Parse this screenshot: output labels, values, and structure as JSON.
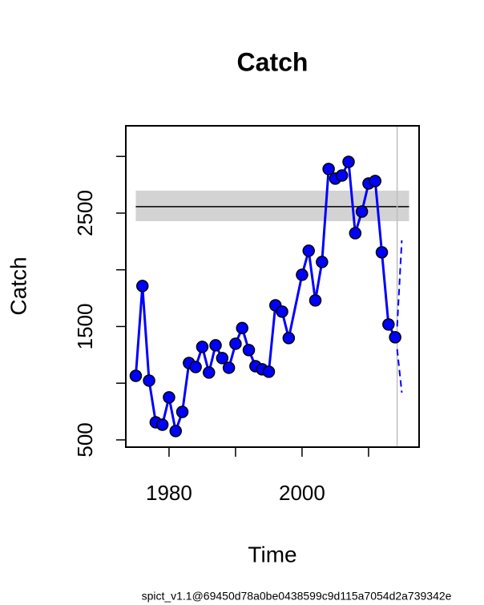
{
  "chart_data": {
    "type": "line",
    "title": "Catch",
    "xlabel": "Time",
    "ylabel": "Catch",
    "footnote": "spict_v1.1@69450d78a0be0438599c9d115a7054d2a739342e",
    "x": [
      1975,
      1976,
      1977,
      1978,
      1979,
      1980,
      1981,
      1982,
      1983,
      1984,
      1985,
      1986,
      1987,
      1988,
      1989,
      1990,
      1991,
      1992,
      1993,
      1994,
      1995,
      1996,
      1997,
      1998,
      2000,
      2001,
      2002,
      2003,
      2004,
      2005,
      2006,
      2007,
      2008,
      2009,
      2010,
      2011,
      2012,
      2013,
      2014
    ],
    "values": [
      1065,
      1857,
      1023,
      655,
      634,
      875,
      578,
      747,
      1178,
      1143,
      1320,
      1094,
      1334,
      1221,
      1136,
      1348,
      1486,
      1292,
      1150,
      1122,
      1101,
      1687,
      1631,
      1398,
      1956,
      2168,
      1730,
      2069,
      2889,
      2804,
      2832,
      2952,
      2323,
      2514,
      2761,
      2783,
      2154,
      1518,
      1405
    ],
    "color": "#0000ff",
    "reference": {
      "value": 2557,
      "band": [
        2429,
        2698
      ],
      "xrange": [
        1975,
        2016.1
      ],
      "band_color": "#d3d3d3"
    },
    "vline": 2014.3,
    "forecast": {
      "x": [
        2014.3,
        2015
      ],
      "upper": [
        1500,
        2260
      ],
      "lower": [
        1300,
        917
      ]
    },
    "xlim": [
      1973.5,
      2017.6
    ],
    "ylim": [
      436,
      3270
    ],
    "xticks": [
      1980,
      {
        "value": 1990,
        "label": null
      },
      2000,
      {
        "value": 2010,
        "label": null
      }
    ],
    "yticks": [
      500,
      {
        "value": 1000,
        "label": null
      },
      1500,
      {
        "value": 2000,
        "label": null
      },
      2500,
      {
        "value": 3000,
        "label": null
      }
    ]
  }
}
